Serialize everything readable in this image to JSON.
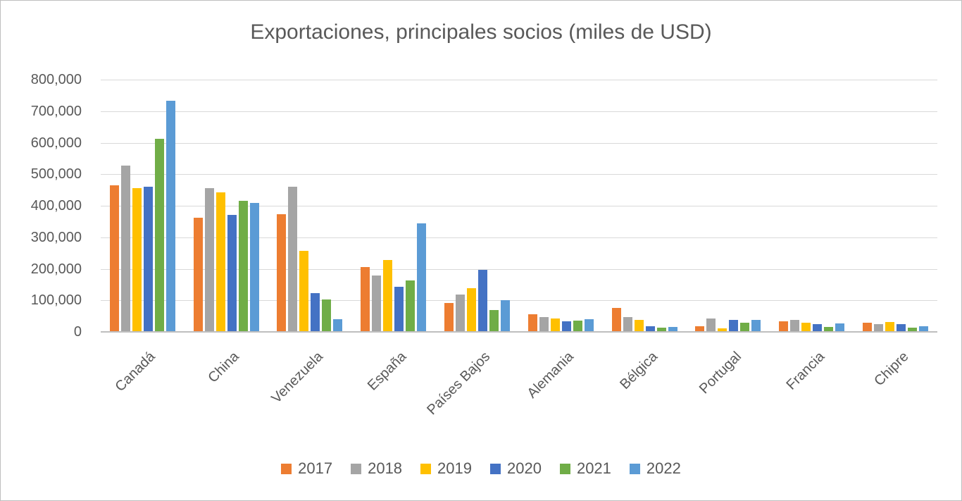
{
  "theme": {
    "text_color": "#595959",
    "grid_color": "#D9D9D9",
    "axis_color": "#BFBFBF",
    "border_color": "#BFBFBF",
    "background": "#FFFFFF"
  },
  "chart_data": {
    "type": "bar",
    "title": "Exportaciones, principales socios (miles de USD)",
    "categories": [
      "Canadá",
      "China",
      "Venezuela",
      "España",
      "Países Bajos",
      "Alemania",
      "Bélgica",
      "Portugal",
      "Francia",
      "Chipre"
    ],
    "series": [
      {
        "name": "2017",
        "color": "#ED7D31",
        "values": [
          465000,
          362000,
          374000,
          205000,
          92000,
          55000,
          76000,
          17000,
          34000,
          30000
        ]
      },
      {
        "name": "2018",
        "color": "#A5A5A5",
        "values": [
          527000,
          455000,
          460000,
          178000,
          118000,
          46000,
          47000,
          42000,
          37000,
          25000
        ]
      },
      {
        "name": "2019",
        "color": "#FFC000",
        "values": [
          455000,
          442000,
          258000,
          228000,
          139000,
          42000,
          38000,
          12000,
          28000,
          32000
        ]
      },
      {
        "name": "2020",
        "color": "#4472C4",
        "values": [
          460000,
          371000,
          122000,
          143000,
          196000,
          34000,
          18000,
          39000,
          25000,
          25000
        ]
      },
      {
        "name": "2021",
        "color": "#70AD47",
        "values": [
          612000,
          416000,
          103000,
          163000,
          69000,
          36000,
          14000,
          28000,
          16000,
          13000
        ]
      },
      {
        "name": "2022",
        "color": "#5B9BD5",
        "values": [
          733000,
          408000,
          40000,
          345000,
          101000,
          40000,
          15000,
          38000,
          27000,
          18000
        ]
      }
    ],
    "xlabel": "",
    "ylabel": "",
    "ylim": [
      0,
      800000
    ],
    "yticks": [
      0,
      100000,
      200000,
      300000,
      400000,
      500000,
      600000,
      700000,
      800000
    ],
    "ytick_labels": [
      "0",
      "100,000",
      "200,000",
      "300,000",
      "400,000",
      "500,000",
      "600,000",
      "700,000",
      "800,000"
    ],
    "grid": true,
    "legend_position": "bottom",
    "x_label_rotation_deg": -45
  }
}
